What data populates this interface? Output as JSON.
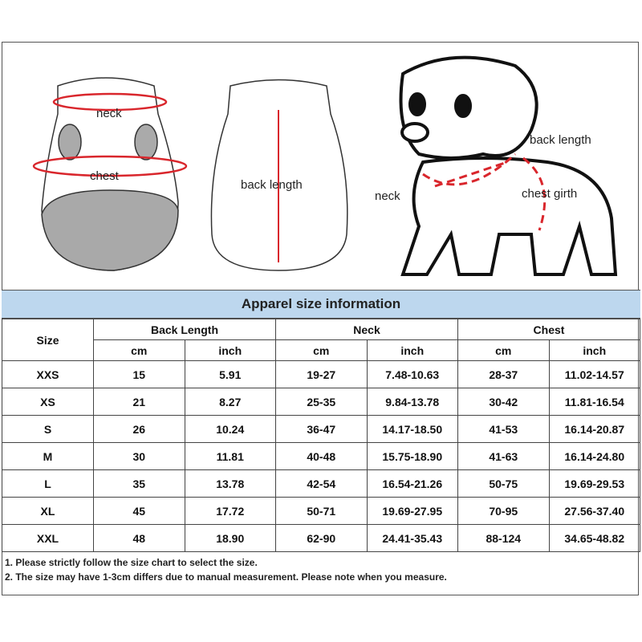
{
  "illustrations": {
    "vest_front": {
      "neck": "neck",
      "chest": "chest"
    },
    "vest_back": {
      "back_length": "back length"
    },
    "dog": {
      "back_length": "back length",
      "neck": "neck",
      "chest_girth": "chest girth"
    }
  },
  "accent_color": "#d9262c",
  "title_bg": "#bdd7ee",
  "table": {
    "title": "Apparel size information",
    "size_header": "Size",
    "groups": [
      "Back Length",
      "Neck",
      "Chest"
    ],
    "units": [
      "cm",
      "inch",
      "cm",
      "inch",
      "cm",
      "inch"
    ],
    "rows": [
      [
        "XXS",
        "15",
        "5.91",
        "19-27",
        "7.48-10.63",
        "28-37",
        "11.02-14.57"
      ],
      [
        "XS",
        "21",
        "8.27",
        "25-35",
        "9.84-13.78",
        "30-42",
        "11.81-16.54"
      ],
      [
        "S",
        "26",
        "10.24",
        "36-47",
        "14.17-18.50",
        "41-53",
        "16.14-20.87"
      ],
      [
        "M",
        "30",
        "11.81",
        "40-48",
        "15.75-18.90",
        "41-63",
        "16.14-24.80"
      ],
      [
        "L",
        "35",
        "13.78",
        "42-54",
        "16.54-21.26",
        "50-75",
        "19.69-29.53"
      ],
      [
        "XL",
        "45",
        "17.72",
        "50-71",
        "19.69-27.95",
        "70-95",
        "27.56-37.40"
      ],
      [
        "XXL",
        "48",
        "18.90",
        "62-90",
        "24.41-35.43",
        "88-124",
        "34.65-48.82"
      ]
    ]
  },
  "notes": [
    "1. Please strictly follow the size chart  to select the size.",
    "2. The size may have 1-3cm differs due to manual measurement. Please note when you measure."
  ]
}
